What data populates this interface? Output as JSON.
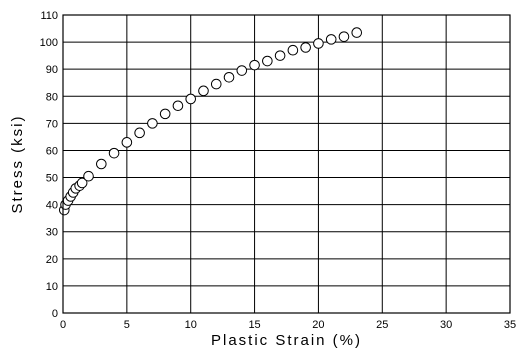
{
  "chart_data": {
    "type": "scatter",
    "title": "",
    "xlabel": "Plastic Strain (%)",
    "ylabel": "Stress (ksi)",
    "xlim": [
      0,
      35
    ],
    "ylim": [
      0,
      110
    ],
    "x_ticks": [
      0,
      5,
      10,
      15,
      20,
      25,
      30,
      35
    ],
    "y_ticks": [
      0,
      10,
      20,
      30,
      40,
      50,
      60,
      70,
      80,
      90,
      100,
      110
    ],
    "grid": true,
    "marker": "open-circle",
    "series": [
      {
        "x": [
          0.1,
          0.2,
          0.4,
          0.6,
          0.8,
          1.0,
          1.3,
          1.5,
          2.0,
          3.0,
          4.0,
          5.0,
          6.0,
          7.0,
          8.0,
          9.0,
          10.0,
          11.0,
          12.0,
          13.0,
          14.0,
          15.0,
          16.0,
          17.0,
          18.0,
          19.0,
          20.0,
          21.0,
          22.0,
          23.0
        ],
        "y": [
          38,
          40,
          41.5,
          43,
          44.5,
          46,
          47,
          48,
          50.5,
          55,
          59,
          63,
          66.5,
          70,
          73.5,
          76.5,
          79,
          82,
          84.5,
          87,
          89.5,
          91.5,
          93,
          95,
          97,
          98,
          99.5,
          101,
          102,
          103.5
        ]
      }
    ]
  }
}
